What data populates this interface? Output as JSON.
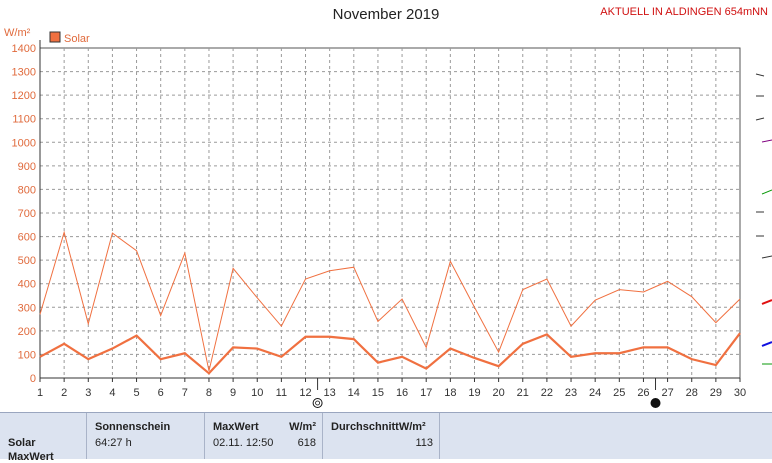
{
  "title": "November 2019",
  "station": "AKTUELL IN ALDINGEN 654mNN",
  "chart_data": {
    "type": "line",
    "title": "November 2019",
    "ylabel": "W/m²",
    "ylim": [
      0,
      1400
    ],
    "yticks": [
      0,
      100,
      200,
      300,
      400,
      500,
      600,
      700,
      800,
      900,
      1000,
      1100,
      1200,
      1300,
      1400
    ],
    "x": [
      1,
      2,
      3,
      4,
      5,
      6,
      7,
      8,
      9,
      10,
      11,
      12,
      13,
      14,
      15,
      16,
      17,
      18,
      19,
      20,
      21,
      22,
      23,
      24,
      25,
      26,
      27,
      28,
      29,
      30
    ],
    "grid": true,
    "legend": "top-left",
    "legend_label": "Solar",
    "colors": {
      "max": "#f07040",
      "avg": "#f07040"
    },
    "series": [
      {
        "name": "Solar",
        "role": "max",
        "values": [
          270,
          618,
          230,
          615,
          540,
          265,
          530,
          30,
          465,
          340,
          220,
          420,
          455,
          470,
          240,
          335,
          130,
          495,
          300,
          110,
          375,
          420,
          220,
          330,
          375,
          365,
          410,
          345,
          235,
          335
        ]
      },
      {
        "name": "Solar",
        "role": "avg",
        "values": [
          90,
          145,
          80,
          125,
          180,
          80,
          105,
          20,
          130,
          125,
          90,
          175,
          175,
          165,
          65,
          90,
          40,
          125,
          85,
          50,
          145,
          185,
          90,
          105,
          105,
          130,
          130,
          80,
          55,
          190
        ]
      }
    ],
    "moon_markers": [
      {
        "day": 12.5,
        "phase": "first-quarter"
      },
      {
        "day": 26.5,
        "phase": "new"
      }
    ]
  },
  "info_panel": {
    "row_label": "Solar",
    "row_label_cut": "MaxWert",
    "sunshine": {
      "header": "Sonnenschein",
      "value": "64:27 h"
    },
    "maxwert": {
      "header": "MaxWert",
      "unit": "W/m²",
      "time": "02.11.  12:50",
      "value": "618"
    },
    "average": {
      "header": "DurchschnittW/m²",
      "value": "113"
    }
  }
}
